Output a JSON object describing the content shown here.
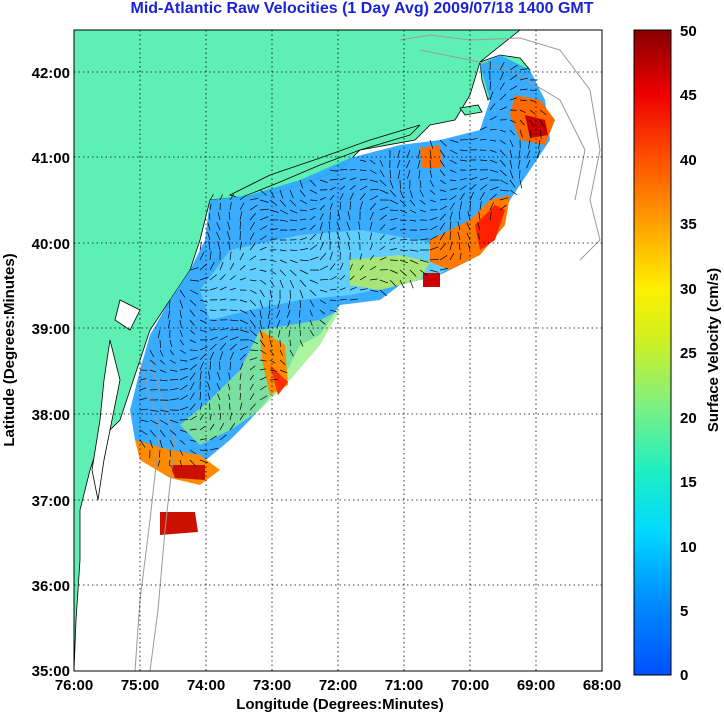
{
  "title": "Mid-Atlantic Raw Velocities (1 Day Avg) 2009/07/18 1400 GMT",
  "map": {
    "xlabel": "Longitude (Degrees:Minutes)",
    "ylabel": "Latitude (Degrees:Minutes)",
    "x_ticks": [
      "76:00",
      "75:00",
      "74:00",
      "73:00",
      "72:00",
      "71:00",
      "70:00",
      "69:00",
      "68:00"
    ],
    "y_ticks": [
      "42:00",
      "41:00",
      "40:00",
      "39:00",
      "38:00",
      "37:00",
      "36:00",
      "35:00"
    ],
    "lon_range": [
      -76,
      -68
    ],
    "lat_range": [
      35,
      42.5
    ],
    "land_color": "#5ef0b2",
    "grid": true
  },
  "colorbar": {
    "label": "Surface Velocity (cm/s)",
    "ticks": [
      "50",
      "45",
      "40",
      "35",
      "30",
      "25",
      "20",
      "15",
      "10",
      "5",
      "0"
    ],
    "range": [
      0,
      50
    ]
  }
}
